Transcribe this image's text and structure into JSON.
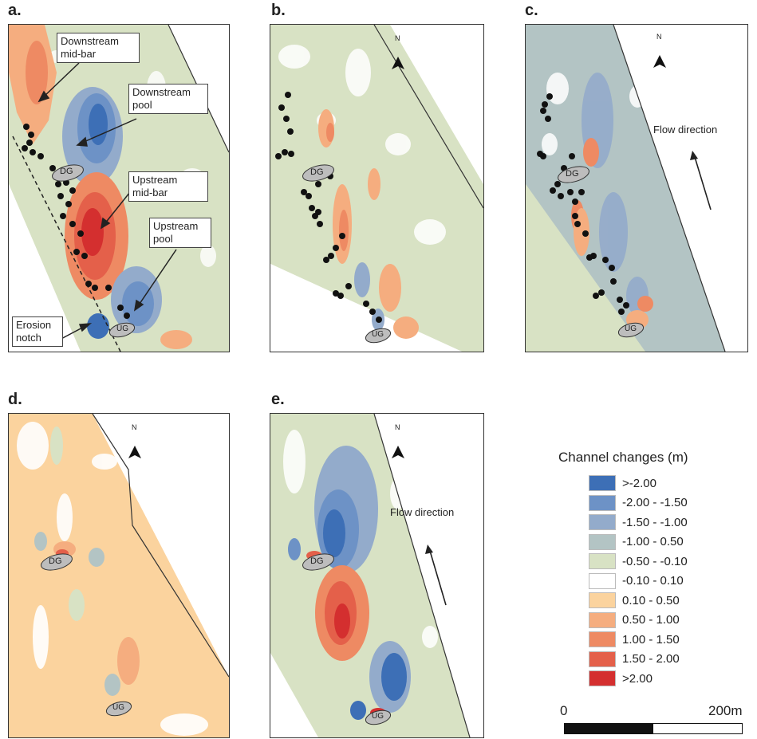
{
  "panels": [
    {
      "label": "a.",
      "gauge_down": "DG",
      "gauge_up": "UG"
    },
    {
      "label": "b.",
      "gauge_down": "DG",
      "gauge_up": "UG",
      "north": "N"
    },
    {
      "label": "c.",
      "gauge_down": "DG",
      "gauge_up": "UG",
      "north": "N",
      "flow": "Flow direction"
    },
    {
      "label": "d.",
      "gauge_down": "DG",
      "gauge_up": "UG",
      "north": "N"
    },
    {
      "label": "e.",
      "gauge_down": "DG",
      "gauge_up": "UG",
      "north": "N",
      "flow": "Flow direction"
    }
  ],
  "annotations": {
    "downstream_midbar": [
      "Downstream",
      "mid-bar"
    ],
    "downstream_pool": [
      "Downstream",
      "pool"
    ],
    "upstream_midbar": [
      "Upstream",
      "mid-bar"
    ],
    "upstream_pool": [
      "Upstream",
      "pool"
    ],
    "erosion_notch": [
      "Erosion",
      "notch"
    ]
  },
  "legend": {
    "title": "Channel changes (m)",
    "items": [
      {
        "label": ">-2.00",
        "color": "#3d6fb6"
      },
      {
        "label": "-2.00 - -1.50",
        "color": "#6d92c6"
      },
      {
        "label": "-1.50 - -1.00",
        "color": "#93abcb"
      },
      {
        "label": "-1.00 - 0.50",
        "color": "#b3c4c4"
      },
      {
        "label": "-0.50 - -0.10",
        "color": "#d8e2c4"
      },
      {
        "label": "-0.10 - 0.10",
        "color": "#ffffff"
      },
      {
        "label": "0.10 - 0.50",
        "color": "#fbd39e"
      },
      {
        "label": "0.50 - 1.00",
        "color": "#f5ad7f"
      },
      {
        "label": "1.00 - 1.50",
        "color": "#ee8a63"
      },
      {
        "label": "1.50 - 2.00",
        "color": "#e4604a"
      },
      {
        "label": ">2.00",
        "color": "#d42f2f"
      }
    ]
  },
  "scale": {
    "start": "0",
    "end": "200m"
  }
}
